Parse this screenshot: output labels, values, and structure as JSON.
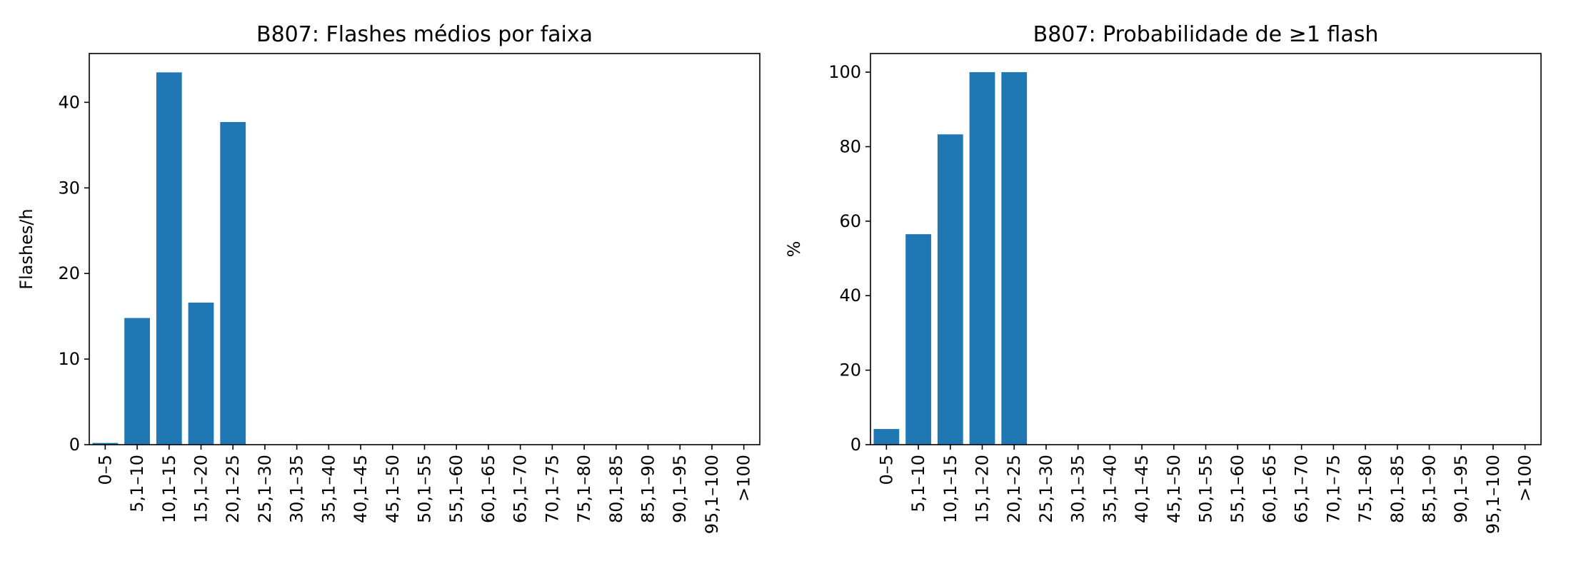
{
  "chart_data": [
    {
      "type": "bar",
      "title": "B807: Flashes médios por faixa",
      "xlabel": "",
      "ylabel": "Flashes/h",
      "categories": [
        "0–5",
        "5,1–10",
        "10,1–15",
        "15,1–20",
        "20,1–25",
        "25,1–30",
        "30,1–35",
        "35,1–40",
        "40,1–45",
        "45,1–50",
        "50,1–55",
        "55,1–60",
        "60,1–65",
        "65,1–70",
        "70,1–75",
        "75,1–80",
        "80,1–85",
        "85,1–90",
        "90,1–95",
        "95,1–100",
        ">100"
      ],
      "values": [
        0.2,
        14.8,
        43.5,
        16.6,
        37.7,
        0,
        0,
        0,
        0,
        0,
        0,
        0,
        0,
        0,
        0,
        0,
        0,
        0,
        0,
        0,
        0
      ],
      "ylim": [
        0,
        45.7
      ],
      "yticks": [
        0,
        10,
        20,
        30,
        40
      ],
      "bar_color": "#1f77b4",
      "grid": false,
      "legend": "none"
    },
    {
      "type": "bar",
      "title": "B807: Probabilidade de ≥1 flash",
      "xlabel": "",
      "ylabel": "%",
      "categories": [
        "0–5",
        "5,1–10",
        "10,1–15",
        "15,1–20",
        "20,1–25",
        "25,1–30",
        "30,1–35",
        "35,1–40",
        "40,1–45",
        "45,1–50",
        "50,1–55",
        "55,1–60",
        "60,1–65",
        "65,1–70",
        "70,1–75",
        "75,1–80",
        "80,1–85",
        "85,1–90",
        "90,1–95",
        "95,1–100",
        ">100"
      ],
      "values": [
        4.2,
        56.5,
        83.3,
        100,
        100,
        0,
        0,
        0,
        0,
        0,
        0,
        0,
        0,
        0,
        0,
        0,
        0,
        0,
        0,
        0,
        0
      ],
      "ylim": [
        0,
        105
      ],
      "yticks": [
        0,
        20,
        40,
        60,
        80,
        100
      ],
      "bar_color": "#1f77b4",
      "grid": false,
      "legend": "none"
    }
  ]
}
